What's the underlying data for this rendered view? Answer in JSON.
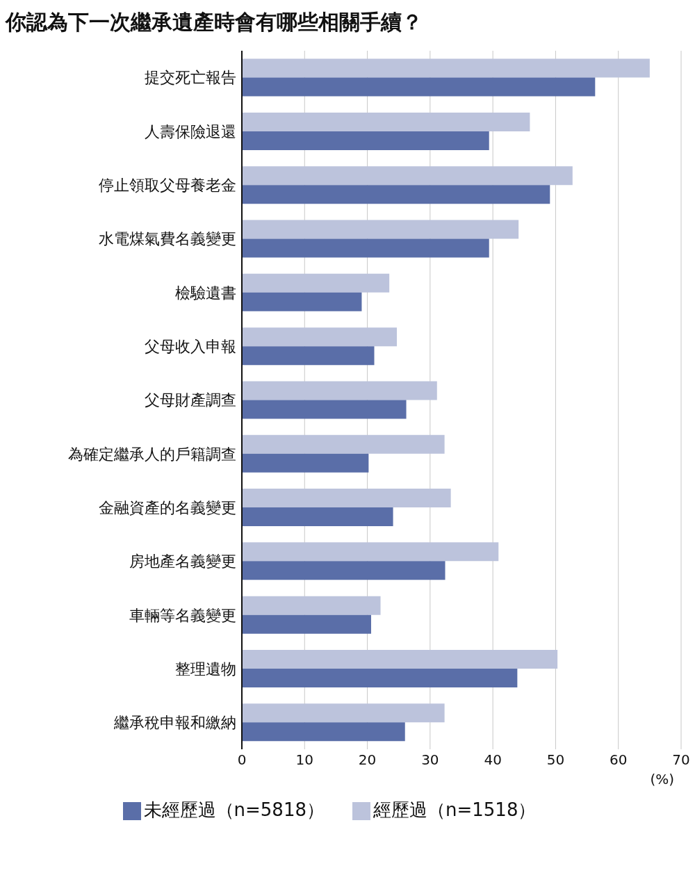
{
  "chart_data": {
    "type": "bar",
    "orientation": "horizontal",
    "title": "你認為下一次繼承遺產時會有哪些相關手續？",
    "xlabel": "(%)",
    "categories": [
      "提交死亡報告",
      "人壽保險退還",
      "停止領取父母養老金",
      "水電煤氣費名義變更",
      "檢驗遺書",
      "父母收入申報",
      "父母財產調查",
      "為確定繼承人的戶籍調查",
      "金融資產的名義變更",
      "房地產名義變更",
      "車輛等名義變更",
      "整理遺物",
      "繼承稅申報和繳納"
    ],
    "series": [
      {
        "name": "經歷過（n=1518）",
        "color": "#bcc3dc",
        "values": [
          65.0,
          45.9,
          52.7,
          44.1,
          23.5,
          24.7,
          31.1,
          32.3,
          33.3,
          40.9,
          22.1,
          50.3,
          32.3
        ]
      },
      {
        "name": "未經歷過（n=5818）",
        "color": "#5a6ea8",
        "values": [
          56.3,
          39.4,
          49.1,
          39.4,
          19.1,
          21.1,
          26.2,
          20.2,
          24.1,
          32.4,
          20.6,
          43.9,
          26.0
        ]
      }
    ],
    "xlim": [
      0,
      70
    ],
    "xticks": [
      0,
      10,
      20,
      30,
      40,
      50,
      60,
      70
    ],
    "grid": "x",
    "legend": "bottom"
  }
}
